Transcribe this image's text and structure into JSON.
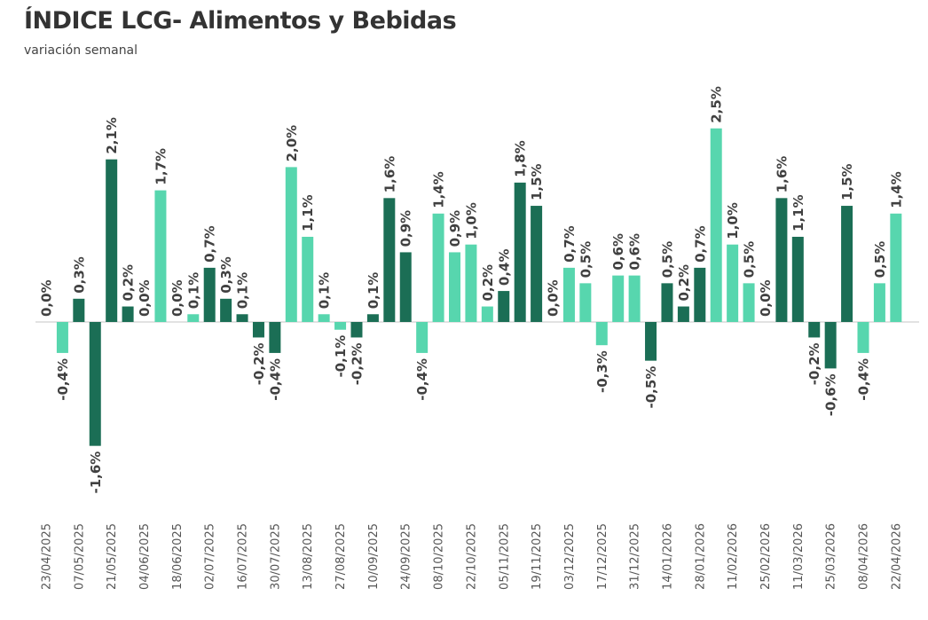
{
  "chart_data": {
    "type": "bar",
    "title": "ÍNDICE LCG- Alimentos y Bebidas",
    "subtitle": "variación semanal",
    "xlabel": "",
    "ylabel": "",
    "ylim": [
      -2.5,
      2.8
    ],
    "grid": false,
    "value_format": "percent, one decimal, comma separator",
    "x_tick_labels": [
      "23/04/2025",
      "07/05/2025",
      "21/05/2025",
      "04/06/2025",
      "18/06/2025",
      "02/07/2025",
      "16/07/2025",
      "30/07/2025",
      "13/08/2025",
      "27/08/2025",
      "10/09/2025",
      "24/09/2025",
      "08/10/2025",
      "22/10/2025",
      "05/11/2025",
      "19/11/2025",
      "03/12/2025",
      "17/12/2025",
      "31/12/2025",
      "14/01/2026",
      "28/01/2026",
      "11/02/2026",
      "25/02/2026",
      "11/03/2026",
      "25/03/2026",
      "08/04/2026",
      "22/04/2026"
    ],
    "values": [
      0.0,
      -0.4,
      0.3,
      -1.6,
      2.1,
      0.2,
      0.0,
      1.7,
      0.0,
      0.1,
      0.7,
      0.3,
      0.1,
      -0.2,
      -0.4,
      2.0,
      1.1,
      0.1,
      -0.1,
      -0.2,
      0.1,
      1.6,
      0.9,
      -0.4,
      1.4,
      0.9,
      1.0,
      0.2,
      0.4,
      1.8,
      1.5,
      0.0,
      0.7,
      0.5,
      -0.3,
      0.6,
      0.6,
      -0.5,
      0.5,
      0.2,
      0.7,
      2.5,
      1.0,
      0.5,
      0.0,
      1.6,
      1.1,
      -0.2,
      -0.6,
      1.5,
      -0.4,
      0.5,
      1.4
    ],
    "bar_shades": [
      "light",
      "light",
      "dark",
      "dark",
      "dark",
      "dark",
      "dark",
      "light",
      "light",
      "light",
      "dark",
      "dark",
      "dark",
      "dark",
      "dark",
      "light",
      "light",
      "light",
      "light",
      "dark",
      "dark",
      "dark",
      "dark",
      "light",
      "light",
      "light",
      "light",
      "light",
      "dark",
      "dark",
      "dark",
      "dark",
      "light",
      "light",
      "light",
      "light",
      "light",
      "dark",
      "dark",
      "dark",
      "dark",
      "light",
      "light",
      "light",
      "light",
      "dark",
      "dark",
      "dark",
      "dark",
      "dark",
      "light",
      "light",
      "light"
    ],
    "colors": {
      "dark": "#1b6e55",
      "light": "#57d6ae",
      "axis": "#d0d0d0"
    }
  }
}
